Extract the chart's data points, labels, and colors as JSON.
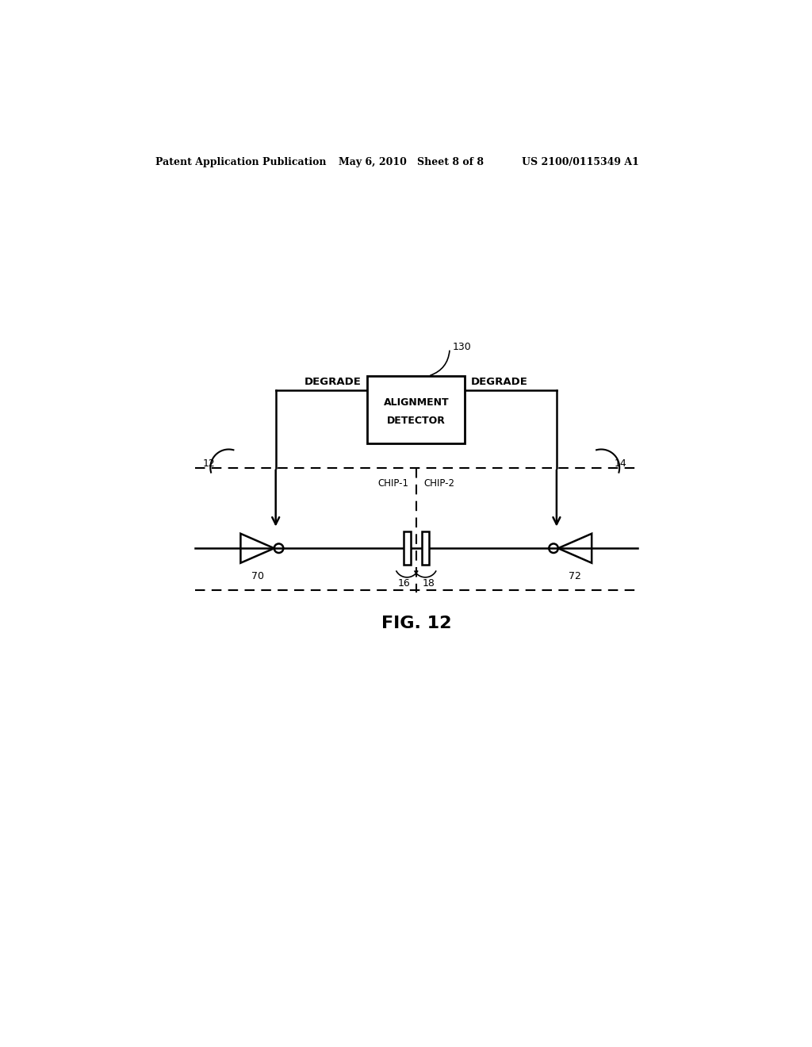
{
  "bg_color": "#ffffff",
  "header_left": "Patent Application Publication",
  "header_mid": "May 6, 2010   Sheet 8 of 8",
  "header_right": "US 2100/0115349 A1",
  "fig_label": "FIG. 12",
  "box_label_line1": "ALIGNMENT",
  "box_label_line2": "DETECTOR",
  "box_ref": "130",
  "label_degrade_left": "DEGRADE",
  "label_degrade_right": "DEGRADE",
  "label_chip1": "CHIP-1",
  "label_chip2": "CHIP-2",
  "ref_12": "12",
  "ref_14": "14",
  "ref_16": "16",
  "ref_18": "18",
  "ref_70": "70",
  "ref_72": "72"
}
